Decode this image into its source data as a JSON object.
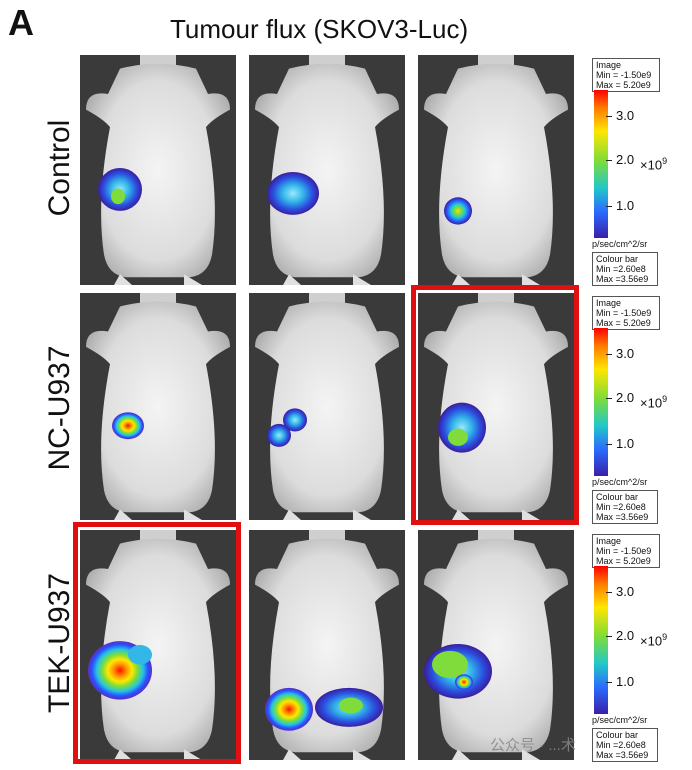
{
  "panel_letter": "A",
  "title": "Tumour flux (SKOV3-Luc)",
  "rows": [
    {
      "label": "Control"
    },
    {
      "label": "NC-U937"
    },
    {
      "label": "TEK-U937"
    }
  ],
  "legend": {
    "image_box": [
      "Image",
      "Min = -1.50e9",
      "Max = 5.20e9"
    ],
    "ticks": [
      "3.0",
      "2.0",
      "1.0"
    ],
    "exponent": "×10",
    "exponent_power": "9",
    "unit": "p/sec/cm^2/sr",
    "colour_box": [
      "Colour bar",
      "Min =2.60e8",
      "Max =3.56e9"
    ]
  },
  "highlighted": [
    "NC-U937 panel 3",
    "TEK-U937 panel 1"
  ],
  "colors": {
    "highlight": "#e01010"
  },
  "watermark": "公众号 · ...术"
}
